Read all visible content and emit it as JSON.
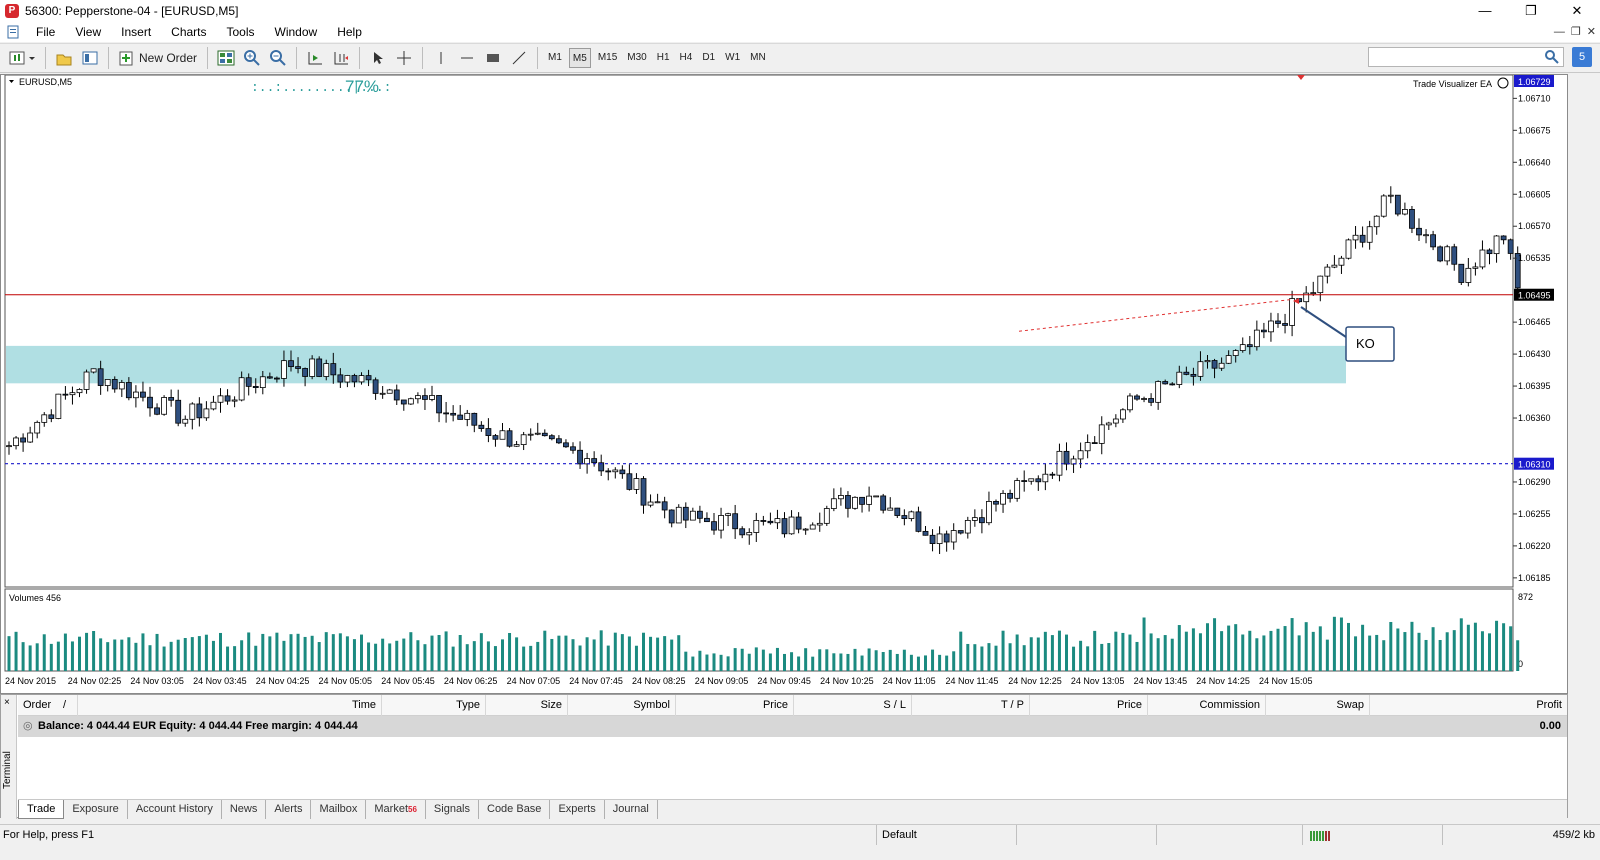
{
  "window": {
    "title": "56300: Pepperstone-04 - [EURUSD,M5]",
    "logo_letter": "P",
    "minimize": "—",
    "maximize": "❐",
    "close": "✕"
  },
  "menu": [
    "File",
    "View",
    "Insert",
    "Charts",
    "Tools",
    "Window",
    "Help"
  ],
  "toolbar": {
    "new_order": "New Order",
    "timeframes": [
      "M1",
      "M5",
      "M15",
      "M30",
      "H1",
      "H4",
      "D1",
      "W1",
      "MN"
    ],
    "active_timeframe": "M5",
    "side_badge": "5"
  },
  "chart": {
    "symbol_label": "EURUSD,M5",
    "progress_text": ":..:.........|...:",
    "progress_percent": "77%",
    "ea_label": "Trade Visualizer EA",
    "ea_icon": "smiley-icon",
    "annotation": "KO",
    "price_labels": [
      "1.06710",
      "1.06675",
      "1.06640",
      "1.06605",
      "1.06570",
      "1.06535",
      "1.06465",
      "1.06430",
      "1.06395",
      "1.06360",
      "1.06290",
      "1.06255",
      "1.06220",
      "1.06185"
    ],
    "top_marker": "1.06729",
    "current_price": "1.06495",
    "support_price": "1.06310",
    "volumes_label": "Volumes 456",
    "volume_max": "872",
    "volume_min": "0",
    "time_labels": [
      "24 Nov 2015",
      "24 Nov 02:25",
      "24 Nov 03:05",
      "24 Nov 03:45",
      "24 Nov 04:25",
      "24 Nov 05:05",
      "24 Nov 05:45",
      "24 Nov 06:25",
      "24 Nov 07:05",
      "24 Nov 07:45",
      "24 Nov 08:25",
      "24 Nov 09:05",
      "24 Nov 09:45",
      "24 Nov 10:25",
      "24 Nov 11:05",
      "24 Nov 11:45",
      "24 Nov 12:25",
      "24 Nov 13:05",
      "24 Nov 13:45",
      "24 Nov 14:25",
      "24 Nov 15:05"
    ],
    "colors": {
      "bull_fill": "#ffffff",
      "bear_fill": "#2f4f7f",
      "candle_line": "#000000",
      "zone": "#b0dfe3",
      "current_line": "#c00000",
      "support_line": "#1a1acc",
      "volume": "#1b8a80",
      "accent": "#2a9d9a"
    }
  },
  "terminal": {
    "side_label": "Terminal",
    "close_icon": "×",
    "columns": [
      "Order",
      "/",
      "Time",
      "Type",
      "Size",
      "Symbol",
      "Price",
      "S / L",
      "T / P",
      "Price",
      "Commission",
      "Swap",
      "Profit"
    ],
    "balance_text": "Balance: 4 044.44 EUR  Equity: 4 044.44  Free margin: 4 044.44",
    "balance_profit": "0.00",
    "tabs": [
      {
        "label": "Trade",
        "active": true
      },
      {
        "label": "Exposure"
      },
      {
        "label": "Account History"
      },
      {
        "label": "News"
      },
      {
        "label": "Alerts"
      },
      {
        "label": "Mailbox"
      },
      {
        "label": "Market",
        "badge": "56"
      },
      {
        "label": "Signals"
      },
      {
        "label": "Code Base"
      },
      {
        "label": "Experts"
      },
      {
        "label": "Journal"
      }
    ]
  },
  "status": {
    "help": "For Help, press F1",
    "profile": "Default",
    "traffic": "459/2 kb"
  }
}
